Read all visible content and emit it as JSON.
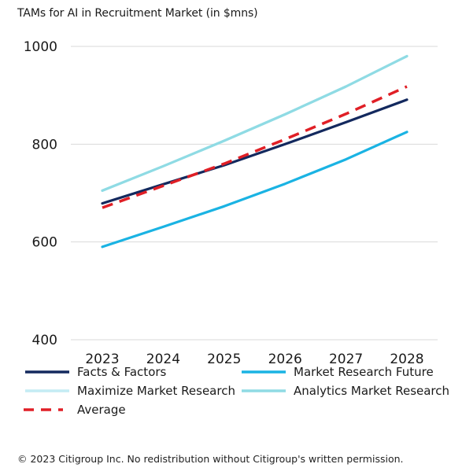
{
  "title": "TAMs for AI in Recruitment Market (in $mns)",
  "footer": "© 2023 Citigroup Inc. No redistribution without Citigroup's written permission.",
  "chart_data": {
    "type": "line",
    "title": "TAMs for AI in Recruitment Market (in $mns)",
    "xlabel": "",
    "ylabel": "",
    "x": [
      "2023",
      "2024",
      "2025",
      "2026",
      "2027",
      "2028"
    ],
    "ylim": [
      400,
      1000
    ],
    "yticks": [
      400,
      600,
      800,
      1000
    ],
    "grid": true,
    "legend_position": "bottom",
    "series": [
      {
        "name": "Facts & Factors",
        "color": "#13295e",
        "dash": "solid",
        "values": [
          679,
          718,
          757,
          800,
          845,
          891
        ]
      },
      {
        "name": "Market Research Future",
        "color": "#1ab3e3",
        "dash": "solid",
        "values": [
          590,
          631,
          673,
          719,
          769,
          825
        ]
      },
      {
        "name": "Maximize Market Research",
        "color": "#c4ecf4",
        "dash": "solid",
        "values": [
          705,
          755,
          807,
          861,
          918,
          980
        ]
      },
      {
        "name": "Analytics Market Research",
        "color": "#8fdbe4",
        "dash": "solid",
        "values": [
          705,
          755,
          807,
          861,
          918,
          980
        ]
      },
      {
        "name": "Average",
        "color": "#e01f26",
        "dash": "dashed",
        "values": [
          670,
          715,
          760,
          810,
          862,
          918
        ]
      }
    ]
  }
}
